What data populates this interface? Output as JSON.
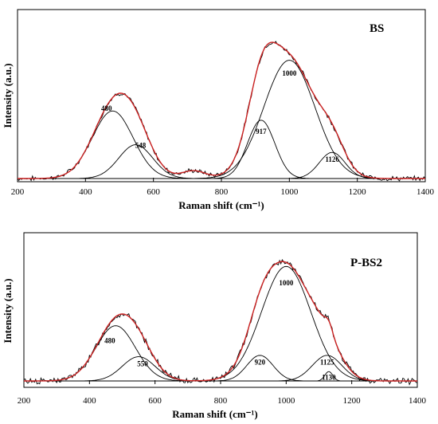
{
  "chart_data": [
    {
      "type": "line",
      "title": "BS",
      "xlabel": "Raman shift (cm⁻¹)",
      "ylabel": "Intensity (a.u.)",
      "xlim": [
        200,
        1400
      ],
      "ylim": [
        0,
        1.1
      ],
      "xticks": [
        "200",
        "400",
        "600",
        "800",
        "1000",
        "1200",
        "1400"
      ],
      "peak_labels": [
        "480",
        "548",
        "917",
        "1000",
        "1126"
      ],
      "colors": {
        "fit": "#cc2222",
        "measured": "#000000",
        "components": "#000000"
      },
      "components": [
        {
          "center": 480,
          "width": 60,
          "amp": 0.44
        },
        {
          "center": 548,
          "width": 50,
          "amp": 0.22
        },
        {
          "center": 917,
          "width": 40,
          "amp": 0.38
        },
        {
          "center": 1000,
          "width": 75,
          "amp": 0.77
        },
        {
          "center": 1126,
          "width": 38,
          "amp": 0.17
        }
      ],
      "extra_feature": {
        "center": 718,
        "width": 35,
        "amp": 0.05
      },
      "label_values": [
        {
          "text": "480",
          "x": 462,
          "y": 0.44
        },
        {
          "text": "548",
          "x": 562,
          "y": 0.2
        },
        {
          "text": "917",
          "x": 917,
          "y": 0.29
        },
        {
          "text": "1000",
          "x": 1000,
          "y": 0.67
        },
        {
          "text": "1126",
          "x": 1126,
          "y": 0.11
        }
      ]
    },
    {
      "type": "line",
      "title": "P-BS2",
      "xlabel": "Raman shift (cm⁻¹)",
      "ylabel": "Intensity (a.u.)",
      "xlim": [
        200,
        1400
      ],
      "ylim": [
        0,
        1.1
      ],
      "xticks": [
        "200",
        "400",
        "600",
        "800",
        "1000",
        "1200",
        "1400"
      ],
      "peak_labels": [
        "480",
        "550",
        "920",
        "1000",
        "1125",
        "1130"
      ],
      "colors": {
        "fit": "#cc2222",
        "measured": "#000000",
        "components": "#000000"
      },
      "components": [
        {
          "center": 480,
          "width": 60,
          "amp": 0.41
        },
        {
          "center": 550,
          "width": 50,
          "amp": 0.18
        },
        {
          "center": 920,
          "width": 40,
          "amp": 0.19
        },
        {
          "center": 1000,
          "width": 75,
          "amp": 0.85
        },
        {
          "center": 1125,
          "width": 45,
          "amp": 0.19
        },
        {
          "center": 1130,
          "width": 12,
          "amp": 0.07
        }
      ],
      "extra_feature": null,
      "label_values": [
        {
          "text": "480",
          "x": 462,
          "y": 0.28
        },
        {
          "text": "550",
          "x": 562,
          "y": 0.11
        },
        {
          "text": "920",
          "x": 920,
          "y": 0.12
        },
        {
          "text": "1000",
          "x": 1000,
          "y": 0.71
        },
        {
          "text": "1125",
          "x": 1125,
          "y": 0.12
        },
        {
          "text": "1130",
          "x": 1130,
          "y": 0.01
        }
      ]
    }
  ]
}
